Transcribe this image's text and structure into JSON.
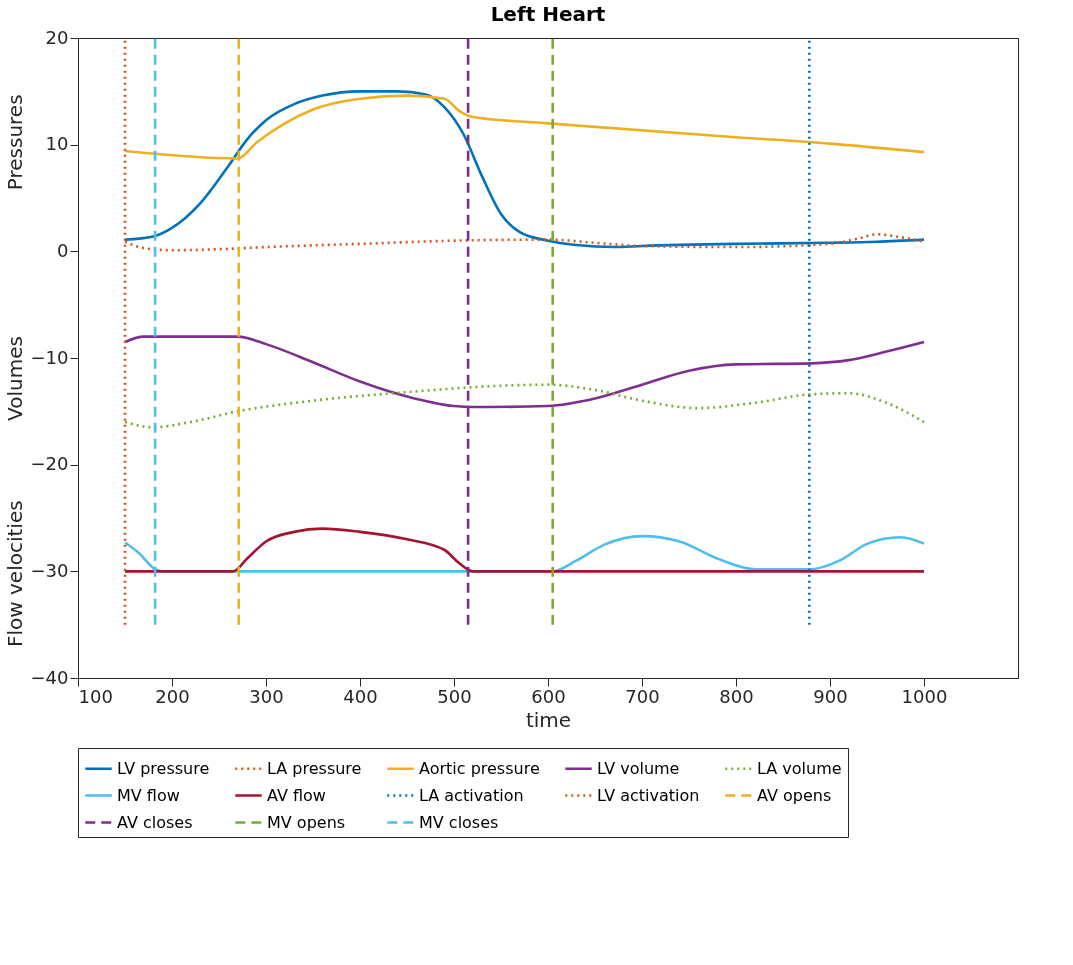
{
  "chart_data": {
    "type": "line",
    "title": "Left Heart",
    "xlabel": "time",
    "annotations": [
      "Pressures",
      "Volumes",
      "Flow velocities"
    ],
    "xlim": [
      100,
      1100
    ],
    "xticks": [
      100,
      200,
      300,
      400,
      500,
      600,
      700,
      800,
      900,
      1000
    ],
    "ylim": [
      -40,
      20
    ],
    "yticks": [
      -40,
      -30,
      -20,
      -10,
      0,
      10,
      20
    ],
    "grid": false,
    "legend": "bottom",
    "series": [
      {
        "name": "LV pressure",
        "color": "#0072bd",
        "line_style": "solid",
        "x": [
          150,
          180,
          200,
          230,
          260,
          280,
          300,
          330,
          360,
          400,
          440,
          470,
          490,
          510,
          530,
          550,
          570,
          600,
          630,
          670,
          700,
          800,
          900,
          950,
          1000
        ],
        "values": [
          1.1,
          1.4,
          2.2,
          4.5,
          8,
          10.5,
          12.3,
          13.8,
          14.6,
          15,
          15,
          14.7,
          13.5,
          11,
          7,
          3.5,
          1.8,
          1,
          0.6,
          0.4,
          0.5,
          0.7,
          0.8,
          0.9,
          1.1
        ]
      },
      {
        "name": "LA pressure",
        "color": "#d95319",
        "line_style": "dotted",
        "x": [
          150,
          170,
          200,
          250,
          300,
          400,
          500,
          600,
          650,
          700,
          800,
          900,
          930,
          950,
          970,
          1000
        ],
        "values": [
          0.9,
          0.3,
          0.1,
          0.2,
          0.4,
          0.7,
          1.0,
          1.1,
          0.8,
          0.5,
          0.4,
          0.7,
          1.2,
          1.6,
          1.4,
          0.9
        ]
      },
      {
        "name": "Aortic pressure",
        "color": "#edb120",
        "line_style": "solid",
        "x": [
          150,
          270,
          290,
          320,
          350,
          400,
          450,
          490,
          505,
          520,
          600,
          800,
          900,
          1000
        ],
        "values": [
          9.4,
          8.7,
          10.2,
          12,
          13.3,
          14.3,
          14.6,
          14.3,
          13.2,
          12.6,
          12.0,
          10.7,
          10.1,
          9.3
        ]
      },
      {
        "name": "LV volume",
        "color": "#7e2f8e",
        "line_style": "solid",
        "x": [
          150,
          170,
          270,
          300,
          350,
          400,
          450,
          500,
          520,
          600,
          650,
          700,
          750,
          800,
          880,
          920,
          960,
          1000
        ],
        "values": [
          -8.5,
          -8,
          -8,
          -8.7,
          -10.4,
          -12.2,
          -13.6,
          -14.5,
          -14.6,
          -14.5,
          -13.8,
          -12.5,
          -11.2,
          -10.6,
          -10.5,
          -10.2,
          -9.4,
          -8.5
        ]
      },
      {
        "name": "LA volume",
        "color": "#77ac30",
        "line_style": "dotted",
        "x": [
          150,
          180,
          220,
          270,
          350,
          450,
          550,
          600,
          650,
          700,
          760,
          820,
          880,
          920,
          960,
          1000
        ],
        "values": [
          -16,
          -16.5,
          -16,
          -15,
          -14,
          -13.2,
          -12.6,
          -12.5,
          -13,
          -14,
          -14.7,
          -14.2,
          -13.4,
          -13.3,
          -14.2,
          -16
        ]
      },
      {
        "name": "MV flow",
        "color": "#4dbeee",
        "line_style": "solid",
        "x": [
          150,
          165,
          182,
          190,
          605,
          630,
          660,
          700,
          740,
          780,
          820,
          880,
          910,
          940,
          975,
          1000
        ],
        "values": [
          -27.3,
          -28.3,
          -29.8,
          -30,
          -30,
          -29,
          -27.5,
          -26.7,
          -27.2,
          -28.8,
          -29.8,
          -29.8,
          -29,
          -27.4,
          -26.8,
          -27.4
        ]
      },
      {
        "name": "AV flow",
        "color": "#a2142f",
        "line_style": "solid",
        "x": [
          150,
          265,
          280,
          300,
          330,
          360,
          400,
          450,
          490,
          505,
          520,
          1000
        ],
        "values": [
          -30,
          -30,
          -28.8,
          -27.2,
          -26.3,
          -26,
          -26.3,
          -27,
          -28,
          -29.2,
          -30,
          -30
        ]
      },
      {
        "name": "LA activation",
        "color": "#0072bd",
        "line_style": "dotted",
        "x": [
          878,
          878
        ],
        "values": [
          -35,
          20
        ]
      },
      {
        "name": "LV activation",
        "color": "#d95319",
        "line_style": "dotted",
        "x": [
          150,
          150
        ],
        "values": [
          -35,
          20
        ]
      },
      {
        "name": "AV opens",
        "color": "#edb120",
        "line_style": "dashed",
        "x": [
          271,
          271
        ],
        "values": [
          -35,
          20
        ]
      },
      {
        "name": "AV closes",
        "color": "#7e2f8e",
        "line_style": "dashed",
        "x": [
          515,
          515
        ],
        "values": [
          -35,
          20
        ]
      },
      {
        "name": "MV opens",
        "color": "#77ac30",
        "line_style": "dashed",
        "x": [
          605,
          605
        ],
        "values": [
          -35,
          20
        ]
      },
      {
        "name": "MV closes",
        "color": "#4dbeee",
        "line_style": "dashed",
        "x": [
          182,
          182
        ],
        "values": [
          -35,
          20
        ]
      }
    ]
  }
}
